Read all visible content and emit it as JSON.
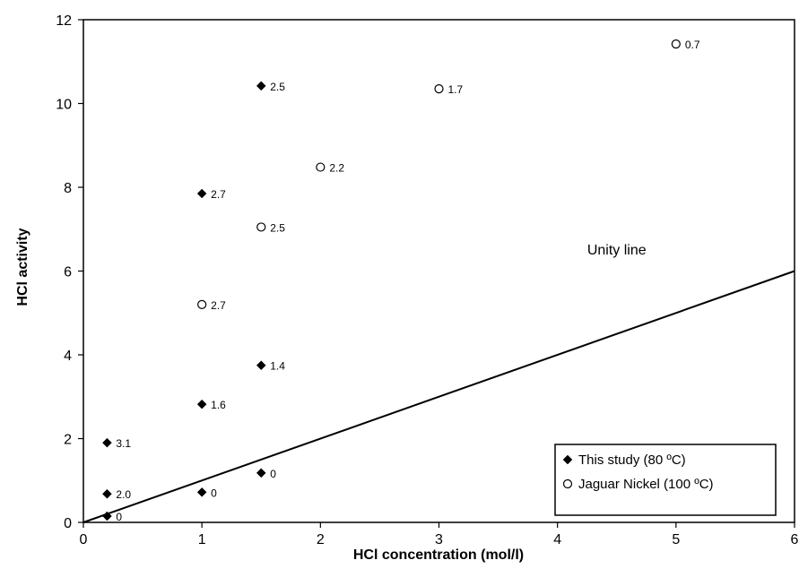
{
  "chart_data": {
    "type": "scatter",
    "xlabel": "HCl concentration (mol/l)",
    "ylabel": "HCl activity",
    "xlim": [
      0,
      6
    ],
    "ylim": [
      0,
      12
    ],
    "x_ticks": [
      "0",
      "1",
      "2",
      "3",
      "4",
      "5",
      "6"
    ],
    "y_ticks": [
      "0",
      "2",
      "4",
      "6",
      "8",
      "10",
      "12"
    ],
    "x_tick_values": [
      0,
      1,
      2,
      3,
      4,
      5,
      6
    ],
    "y_tick_values": [
      0,
      2,
      4,
      6,
      8,
      10,
      12
    ],
    "grid": false,
    "legend_position": "bottom-right",
    "series": [
      {
        "name": "This study (80 ºC)",
        "marker": "filled-diamond",
        "color": "#000000",
        "points": [
          {
            "x": 0.2,
            "y": 0.15,
            "label": "0"
          },
          {
            "x": 0.2,
            "y": 0.68,
            "label": "2.0"
          },
          {
            "x": 0.2,
            "y": 1.9,
            "label": "3.1"
          },
          {
            "x": 1.0,
            "y": 0.72,
            "label": "0"
          },
          {
            "x": 1.0,
            "y": 2.82,
            "label": "1.6"
          },
          {
            "x": 1.0,
            "y": 7.85,
            "label": "2.7"
          },
          {
            "x": 1.5,
            "y": 1.18,
            "label": "0"
          },
          {
            "x": 1.5,
            "y": 3.75,
            "label": "1.4"
          },
          {
            "x": 1.5,
            "y": 10.42,
            "label": "2.5"
          }
        ]
      },
      {
        "name": "Jaguar Nickel (100 ºC)",
        "marker": "open-circle",
        "color": "#000000",
        "points": [
          {
            "x": 1.0,
            "y": 5.2,
            "label": "2.7"
          },
          {
            "x": 1.5,
            "y": 7.05,
            "label": "2.5"
          },
          {
            "x": 2.0,
            "y": 8.48,
            "label": "2.2"
          },
          {
            "x": 3.0,
            "y": 10.35,
            "label": "1.7"
          },
          {
            "x": 5.0,
            "y": 11.42,
            "label": "0.7"
          }
        ]
      }
    ],
    "reference_line": {
      "label": "Unity line",
      "from": [
        0,
        0
      ],
      "to": [
        6,
        6
      ],
      "label_at": [
        4.5,
        6.4
      ]
    }
  }
}
